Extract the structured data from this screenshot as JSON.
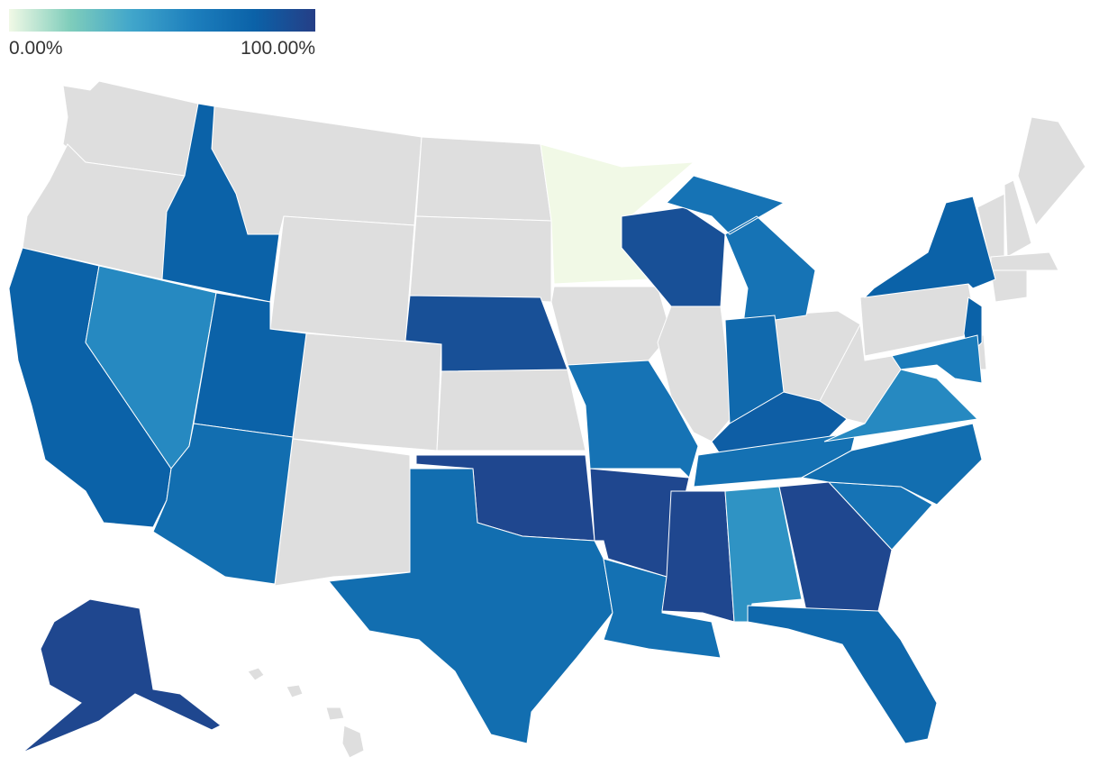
{
  "chart_data": {
    "type": "choropleth",
    "legend": {
      "ticks": [
        {
          "value": 0,
          "label": "0.00%"
        },
        {
          "value": 100,
          "label": "100.00%"
        }
      ],
      "colors": [
        "#f1f9e6",
        "#7fcdbb",
        "#41a6cb",
        "#1d7fbd",
        "#0b62a8",
        "#253e86"
      ]
    },
    "values": [
      80,
      55,
      80,
      80,
      72,
      90,
      95,
      72,
      0,
      68,
      95,
      70,
      90,
      68,
      75,
      82,
      70,
      95,
      50,
      95,
      76,
      68,
      72,
      55,
      80,
      80,
      62,
      95
    ]
  }
}
